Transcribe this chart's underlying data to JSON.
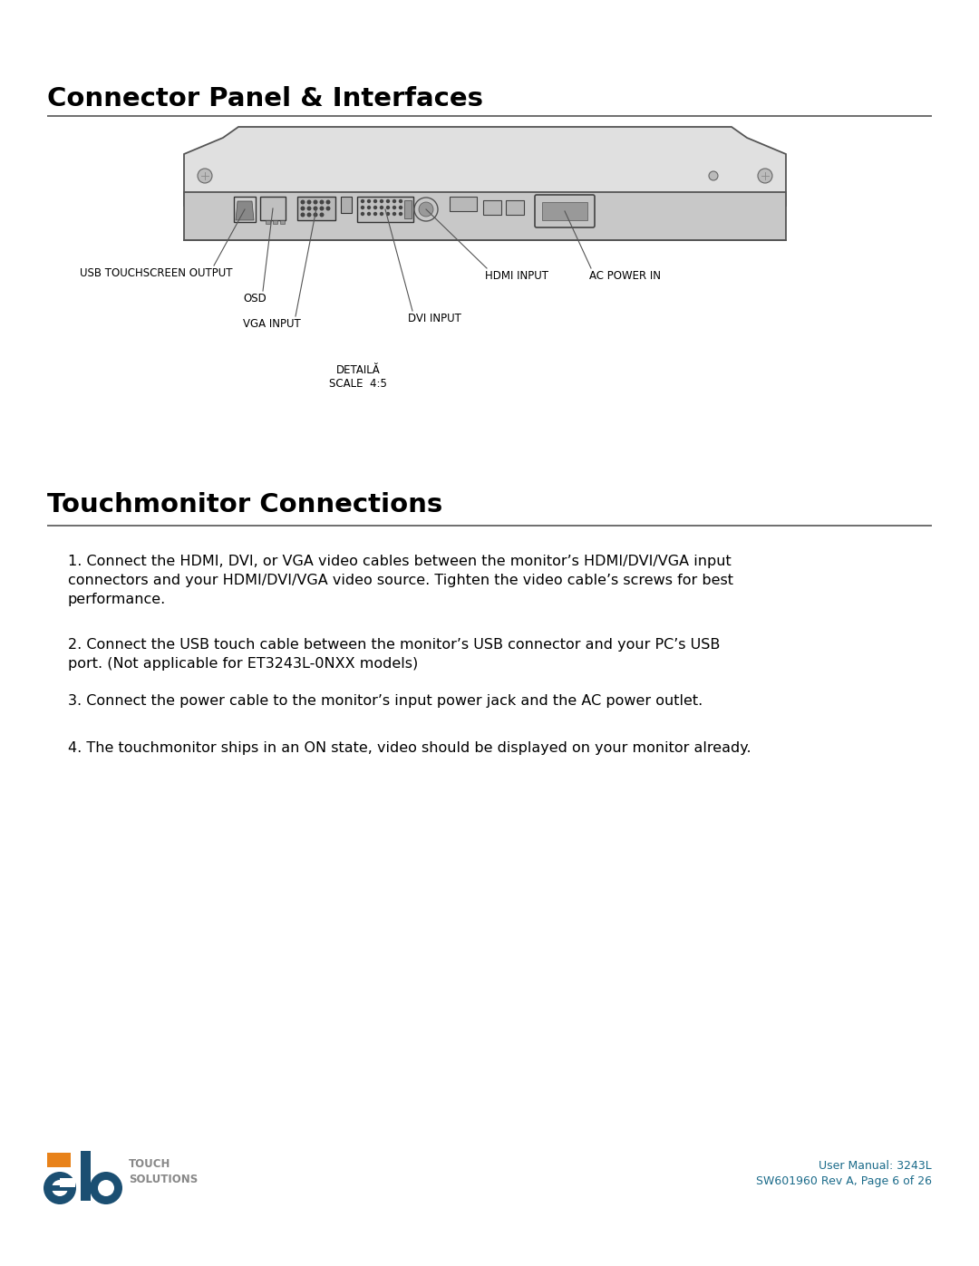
{
  "title1": "Connector Panel & Interfaces",
  "title2": "Touchmonitor Connections",
  "bg_color": "#ffffff",
  "title_color": "#000000",
  "section1_labels": {
    "usb": "USB TOUCHSCREEN OUTPUT",
    "osd": "OSD",
    "vga": "VGA INPUT",
    "hdmi": "HDMI INPUT",
    "dvi": "DVI INPUT",
    "ac": "AC POWER IN",
    "detail": "DETAILĂ\nSCALE  4:5"
  },
  "section2_paragraphs": [
    "1. Connect the HDMI, DVI, or VGA video cables between the monitor’s HDMI/DVI/VGA input\nconnectors and your HDMI/DVI/VGA video source. Tighten the video cable’s screws for best\nperformance.",
    "2. Connect the USB touch cable between the monitor’s USB connector and your PC’s USB\nport. (Not applicable for ET3243L-0NXX models)",
    "3. Connect the power cable to the monitor’s input power jack and the AC power outlet.",
    "4. The touchmonitor ships in an ON state, video should be displayed on your monitor already."
  ],
  "footer_text1": "User Manual: 3243L",
  "footer_text2": "SW601960 Rev A, Page 6 of 26",
  "footer_color": "#1b6b8a",
  "elo_blue": "#1b4f72",
  "elo_orange": "#e8821a"
}
